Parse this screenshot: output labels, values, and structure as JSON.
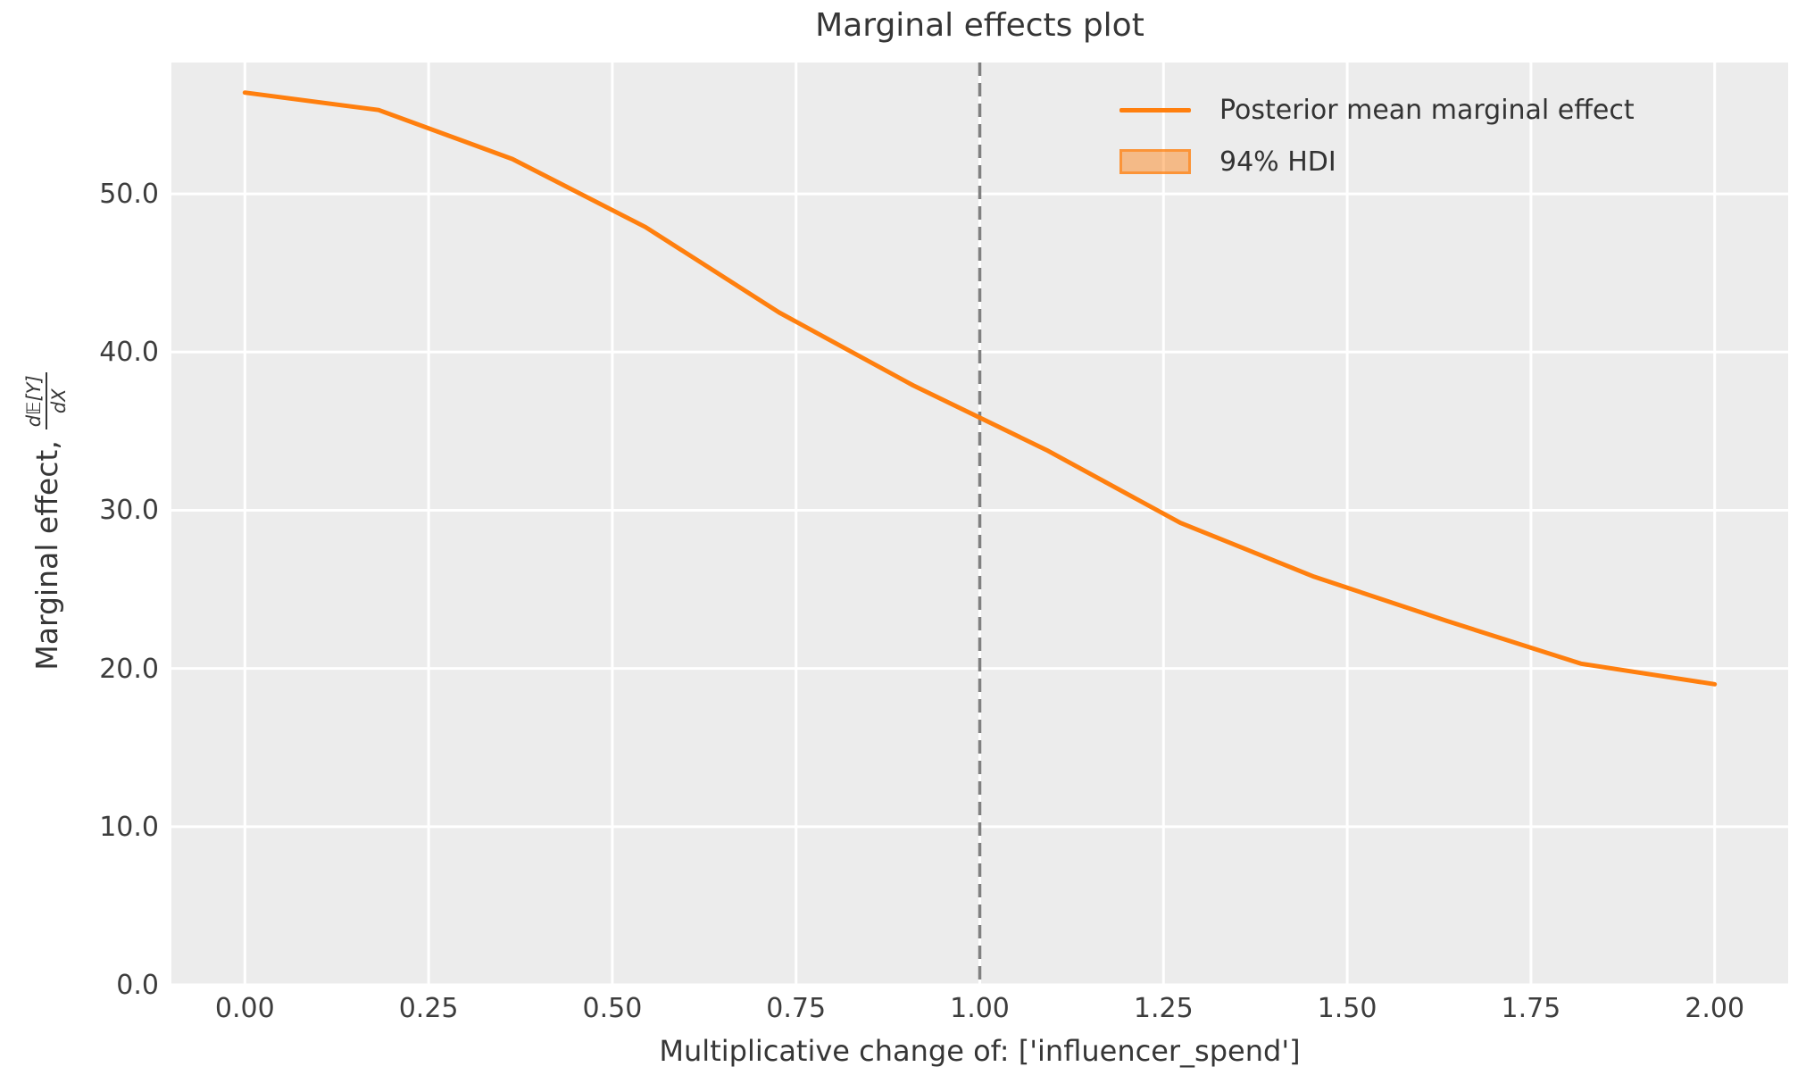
{
  "chart": {
    "title": "Marginal effects plot",
    "xlabel": "Multiplicative change of: ['influencer_spend']",
    "ylabel_prefix": "Marginal effect,",
    "ylabel_frac_numerator": "d𝔼[Y]",
    "ylabel_frac_denominator": "dX"
  },
  "legend": {
    "position": "upper right",
    "items": [
      {
        "swatch": "line",
        "color": "#ff7f0e",
        "label": "Posterior mean marginal effect"
      },
      {
        "swatch": "patch",
        "color": "#ff7f0e",
        "label": "94% HDI"
      }
    ]
  },
  "chart_data": {
    "type": "line",
    "title": "Marginal effects plot",
    "xlabel": "Multiplicative change of: ['influencer_spend']",
    "ylabel": "Marginal effect, d𝔼[Y]/dX",
    "series": [
      {
        "name": "Posterior mean marginal effect",
        "color": "#ff7f0e",
        "x": [
          0.0,
          0.182,
          0.364,
          0.545,
          0.727,
          0.909,
          1.091,
          1.273,
          1.455,
          1.636,
          1.818,
          2.0
        ],
        "y": [
          56.4,
          55.3,
          52.2,
          47.9,
          42.5,
          37.9,
          33.8,
          29.2,
          25.8,
          23.0,
          20.3,
          19.0
        ]
      }
    ],
    "reference_line": {
      "x": 1.0,
      "style": "dashed",
      "color": "#808080"
    },
    "xlim": [
      -0.1,
      2.1
    ],
    "ylim": [
      0,
      58.3
    ],
    "xticks": [
      0.0,
      0.25,
      0.5,
      0.75,
      1.0,
      1.25,
      1.5,
      1.75,
      2.0
    ],
    "xtick_labels": [
      "0.00",
      "0.25",
      "0.50",
      "0.75",
      "1.00",
      "1.25",
      "1.50",
      "1.75",
      "2.00"
    ],
    "yticks": [
      0,
      10,
      20,
      30,
      40,
      50
    ],
    "ytick_labels": [
      "0.0",
      "10.0",
      "20.0",
      "30.0",
      "40.0",
      "50.0"
    ],
    "grid": true,
    "legend_position": "upper right",
    "background_color": "#ececec",
    "grid_color": "#ffffff"
  }
}
